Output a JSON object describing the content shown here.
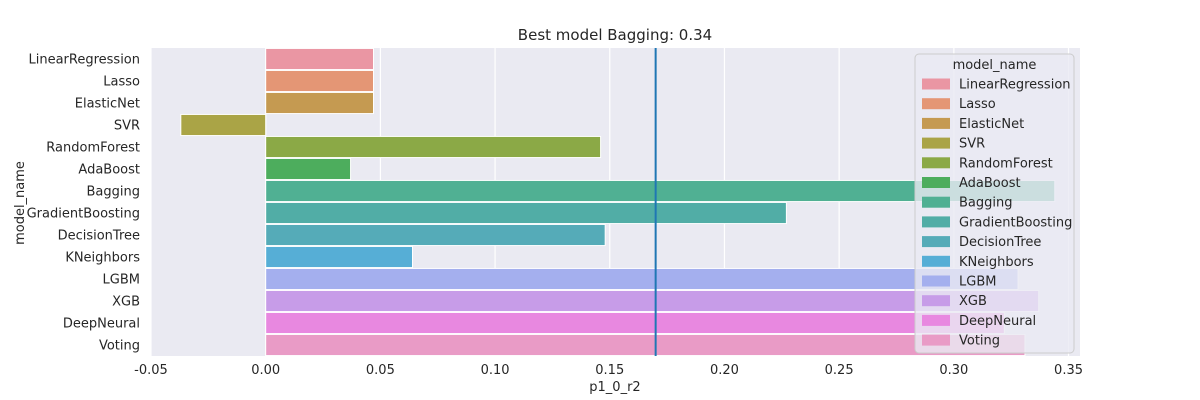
{
  "chart_data": {
    "type": "bar",
    "orientation": "horizontal",
    "title": "Best model Bagging: 0.34",
    "xlabel": "p1_0_r2",
    "ylabel": "model_name",
    "xlim": [
      -0.05,
      0.355
    ],
    "xticks": [
      -0.05,
      0.0,
      0.05,
      0.1,
      0.15,
      0.2,
      0.25,
      0.3,
      0.35
    ],
    "xtick_labels": [
      "-0.05",
      "0.00",
      "0.05",
      "0.10",
      "0.15",
      "0.20",
      "0.25",
      "0.30",
      "0.35"
    ],
    "grid": true,
    "reference_line": {
      "x": 0.17,
      "color": "#1f77b4"
    },
    "categories": [
      "LinearRegression",
      "Lasso",
      "ElasticNet",
      "SVR",
      "RandomForest",
      "AdaBoost",
      "Bagging",
      "GradientBoosting",
      "DecisionTree",
      "KNeighbors",
      "LGBM",
      "XGB",
      "DeepNeural",
      "Voting"
    ],
    "values": [
      0.047,
      0.047,
      0.047,
      -0.037,
      0.146,
      0.037,
      0.344,
      0.227,
      0.148,
      0.064,
      0.328,
      0.337,
      0.322,
      0.331
    ],
    "colors": [
      "#ea96a3",
      "#e49675",
      "#c59a51",
      "#aaa446",
      "#8ba946",
      "#4dad5d",
      "#50b093",
      "#51ada6",
      "#55abb8",
      "#56aed6",
      "#a4afee",
      "#c79ce8",
      "#e888e0",
      "#e99bc6"
    ],
    "legend": {
      "title": "model_name",
      "position": "top-right"
    }
  }
}
